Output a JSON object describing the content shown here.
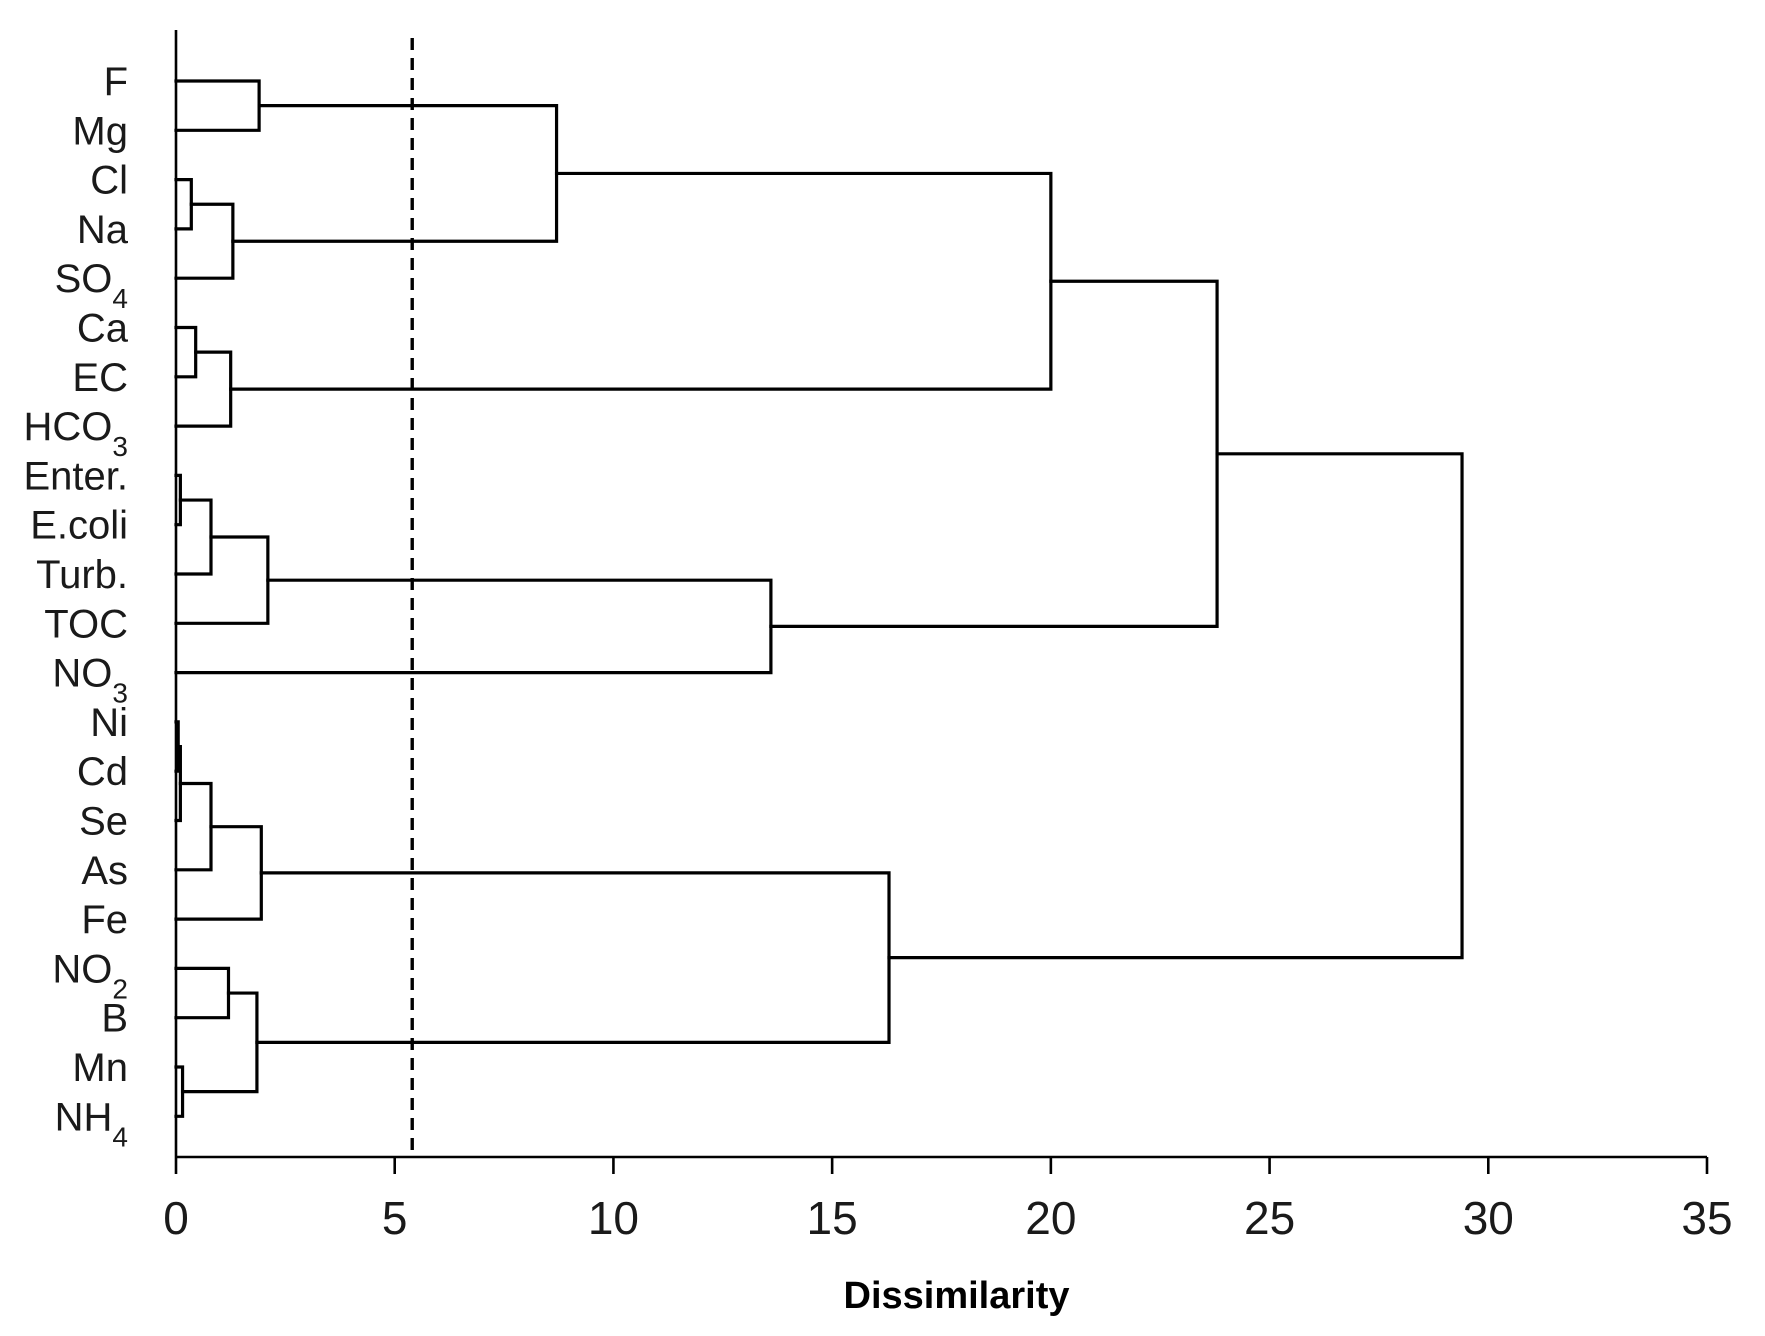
{
  "chart_data": {
    "type": "dendrogram",
    "orientation": "horizontal",
    "xlabel": "Dissimilarity",
    "xlim": [
      0,
      35
    ],
    "xticks": [
      0,
      5,
      10,
      15,
      20,
      25,
      30,
      35
    ],
    "grid": false,
    "cutoff_line": {
      "x": 5.4,
      "style": "dashed"
    },
    "leaves": [
      {
        "label": "F",
        "sub": ""
      },
      {
        "label": "Mg",
        "sub": ""
      },
      {
        "label": "Cl",
        "sub": ""
      },
      {
        "label": "Na",
        "sub": ""
      },
      {
        "label": "SO",
        "sub": "4"
      },
      {
        "label": "Ca",
        "sub": ""
      },
      {
        "label": "EC",
        "sub": ""
      },
      {
        "label": "HCO",
        "sub": "3"
      },
      {
        "label": "Enter.",
        "sub": ""
      },
      {
        "label": "E.coli",
        "sub": ""
      },
      {
        "label": "Turb.",
        "sub": ""
      },
      {
        "label": "TOC",
        "sub": ""
      },
      {
        "label": "NO",
        "sub": "3"
      },
      {
        "label": "Ni",
        "sub": ""
      },
      {
        "label": "Cd",
        "sub": ""
      },
      {
        "label": "Se",
        "sub": ""
      },
      {
        "label": "As",
        "sub": ""
      },
      {
        "label": "Fe",
        "sub": ""
      },
      {
        "label": "NO",
        "sub": "2"
      },
      {
        "label": "B",
        "sub": ""
      },
      {
        "label": "Mn",
        "sub": ""
      },
      {
        "label": "NH",
        "sub": "4"
      }
    ],
    "merges": [
      {
        "left": 0,
        "right": 1,
        "height": 1.9
      },
      {
        "left": 2,
        "right": 3,
        "height": 0.35
      },
      {
        "left": "m1",
        "right": 4,
        "height": 1.3
      },
      {
        "left": "m0",
        "right": "m2",
        "height": 8.7
      },
      {
        "left": 5,
        "right": 6,
        "height": 0.45
      },
      {
        "left": "m4",
        "right": 7,
        "height": 1.25
      },
      {
        "left": "m3",
        "right": "m5",
        "height": 20.0
      },
      {
        "left": 8,
        "right": 9,
        "height": 0.1
      },
      {
        "left": "m7",
        "right": 10,
        "height": 0.8
      },
      {
        "left": "m8",
        "right": 11,
        "height": 2.1
      },
      {
        "left": "m9",
        "right": 12,
        "height": 13.6
      },
      {
        "left": "m6",
        "right": "m10",
        "height": 23.8
      },
      {
        "left": 13,
        "right": 14,
        "height": 0.05
      },
      {
        "left": "m12",
        "right": 15,
        "height": 0.1
      },
      {
        "left": "m13",
        "right": 16,
        "height": 0.8
      },
      {
        "left": "m14",
        "right": 17,
        "height": 1.95
      },
      {
        "left": 18,
        "right": 19,
        "height": 1.2
      },
      {
        "left": 20,
        "right": 21,
        "height": 0.15
      },
      {
        "left": "m16",
        "right": "m17",
        "height": 1.85
      },
      {
        "left": "m15",
        "right": "m18",
        "height": 16.3
      },
      {
        "left": "m11",
        "right": "m19",
        "height": 29.4
      }
    ]
  }
}
